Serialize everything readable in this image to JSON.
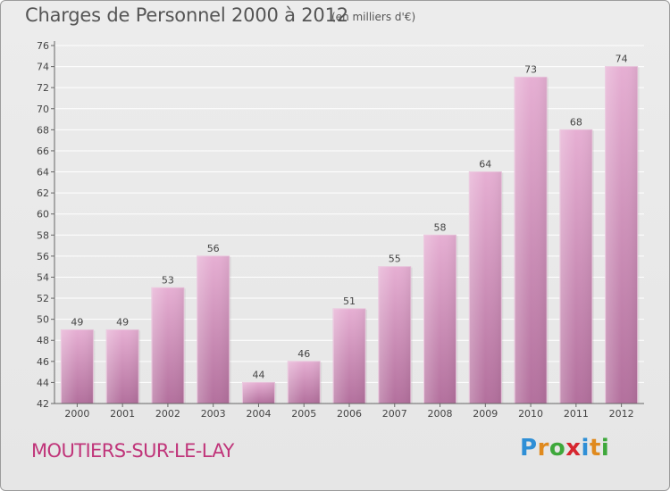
{
  "header": {
    "title": "Charges de Personnel 2000 à 2012",
    "subtitle": "(en milliers d'€)"
  },
  "footer": {
    "commune": "MOUTIERS-SUR-LE-LAY",
    "logo": {
      "letters": [
        "P",
        "r",
        "o",
        "x",
        "i",
        "t",
        "i"
      ],
      "colors": [
        "#2f8fd6",
        "#e08a1e",
        "#3ea83b",
        "#d6262f",
        "#2f8fd6",
        "#e08a1e",
        "#3ea83b"
      ]
    }
  },
  "colors": {
    "bar_light": "#e4aad0",
    "bar_dark": "#b5719f",
    "axis": "#666666",
    "grid": "#ffffff"
  },
  "chart_data": {
    "type": "bar",
    "title": "Charges de Personnel 2000 à 2012",
    "subtitle": "(en milliers d'€)",
    "xlabel": "",
    "ylabel": "",
    "categories": [
      "2000",
      "2001",
      "2002",
      "2003",
      "2004",
      "2005",
      "2006",
      "2007",
      "2008",
      "2009",
      "2010",
      "2011",
      "2012"
    ],
    "values": [
      49,
      49,
      53,
      56,
      44,
      46,
      51,
      55,
      58,
      64,
      73,
      68,
      74
    ],
    "ylim": [
      42,
      76
    ],
    "yticks": [
      42,
      44,
      46,
      48,
      50,
      52,
      54,
      56,
      58,
      60,
      62,
      64,
      66,
      68,
      70,
      72,
      74,
      76
    ],
    "grid": true,
    "value_labels": true
  }
}
